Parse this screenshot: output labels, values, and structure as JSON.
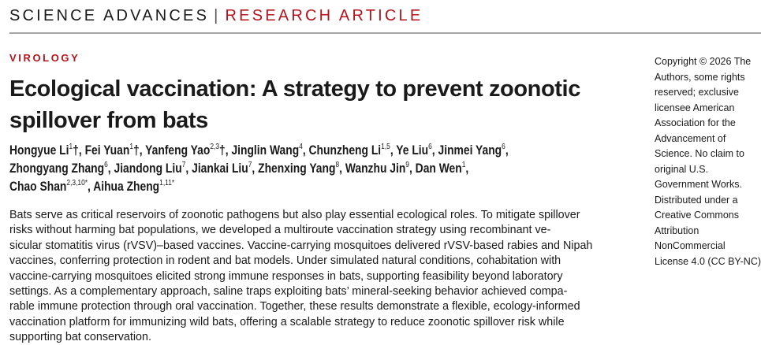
{
  "header": {
    "journal": "SCIENCE ADVANCES",
    "separator": "|",
    "article_type": "RESEARCH ARTICLE"
  },
  "section": "VIROLOGY",
  "title_lines": [
    "Ecological vaccination: A strategy to prevent zoonotic",
    "spillover from bats"
  ],
  "author_lines": [
    [
      {
        "name": "Hongyue Li",
        "sup": "1",
        "mark": "†"
      },
      {
        "name": "Fei Yuan",
        "sup": "1",
        "mark": "†"
      },
      {
        "name": "Yanfeng Yao",
        "sup": "2,3",
        "mark": "†"
      },
      {
        "name": "Jinglin Wang",
        "sup": "4",
        "mark": ""
      },
      {
        "name": "Chunzheng Li",
        "sup": "1,5",
        "mark": ""
      },
      {
        "name": "Ye Liu",
        "sup": "6",
        "mark": ""
      },
      {
        "name": "Jinmei Yang",
        "sup": "6",
        "mark": ""
      }
    ],
    [
      {
        "name": "Zhongyang Zhang",
        "sup": "6",
        "mark": ""
      },
      {
        "name": "Jiandong Liu",
        "sup": "7",
        "mark": ""
      },
      {
        "name": "Jiankai Liu",
        "sup": "7",
        "mark": ""
      },
      {
        "name": "Zhenxing Yang",
        "sup": "8",
        "mark": ""
      },
      {
        "name": "Wanzhu Jin",
        "sup": "9",
        "mark": ""
      },
      {
        "name": "Dan Wen",
        "sup": "1",
        "mark": ""
      }
    ],
    [
      {
        "name": "Chao Shan",
        "sup": "2,3,10*",
        "mark": ""
      },
      {
        "name": "Aihua Zheng",
        "sup": "1,11*",
        "mark": ""
      }
    ]
  ],
  "abstract_lines": [
    "Bats serve as critical reservoirs of zoonotic pathogens but also play essential ecological roles. To mitigate spillover",
    "risks without harming bat populations, we developed a multiroute vaccination strategy using recombinant ve-",
    "sicular stomatitis virus (rVSV)–based vaccines. Vaccine-carrying mosquitoes delivered rVSV-based rabies and Nipah",
    "vaccines, conferring protection in rodent and bat models. Under simulated natural conditions, cohabitation with",
    "vaccine-carrying mosquitoes elicited strong immune responses in bats, supporting feasibility beyond laboratory",
    "settings. As a complementary approach, saline traps exploiting bats’ mineral-seeking behavior achieved compa-",
    "rable immune protection through oral vaccination. Together, these results demonstrate a flexible, ecology-informed",
    "vaccination platform for immunizing wild bats, offering a scalable strategy to reduce zoonotic spillover risk while",
    "supporting bat conservation."
  ],
  "copyright_lines": [
    "Copyright © 2026 The",
    "Authors, some rights",
    "reserved; exclusive",
    "licensee American",
    "Association for the",
    "Advancement of",
    "Science. No claim to",
    "original U.S.",
    "Government Works.",
    "Distributed under a",
    "Creative Commons",
    "Attribution",
    "NonCommercial",
    "License 4.0 (CC BY-NC)."
  ],
  "colors": {
    "accent": "#b5121b",
    "rule": "#a6a6a6"
  }
}
